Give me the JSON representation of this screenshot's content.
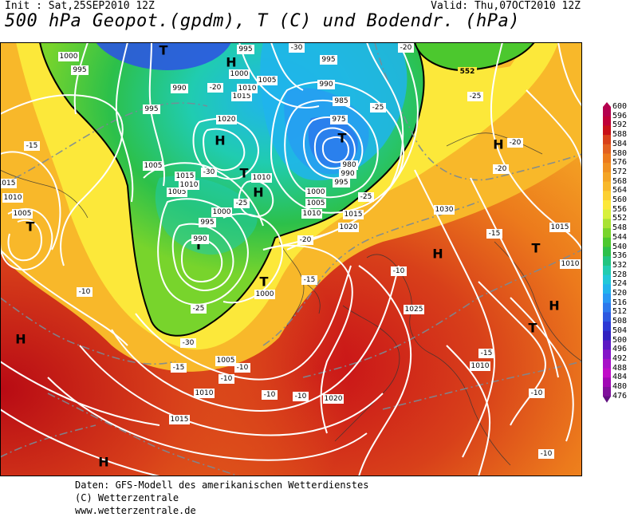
{
  "header": {
    "init": "Init : Sat,25SEP2010 12Z",
    "valid": "Valid: Thu,07OCT2010 12Z",
    "title": "500 hPa Geopot.(gpdm), T (C) und Bodendr. (hPa)"
  },
  "footer": {
    "line1": "Daten: GFS-Modell des amerikanischen Wetterdienstes",
    "line2": "(C) Wetterzentrale",
    "line3": "www.wetterzentrale.de"
  },
  "legend": {
    "levels": [
      "600",
      "596",
      "592",
      "588",
      "584",
      "580",
      "576",
      "572",
      "568",
      "564",
      "560",
      "556",
      "552",
      "548",
      "544",
      "540",
      "536",
      "532",
      "528",
      "524",
      "520",
      "516",
      "512",
      "508",
      "504",
      "500",
      "496",
      "492",
      "488",
      "484",
      "480",
      "476"
    ],
    "colors": [
      "#b4004e",
      "#c00038",
      "#c81018",
      "#d8401a",
      "#e26020",
      "#ec7a1c",
      "#f09020",
      "#f4a424",
      "#f8b82a",
      "#fcd032",
      "#fce83a",
      "#d8f03c",
      "#a8e234",
      "#78d42c",
      "#4cc82e",
      "#2cc04a",
      "#20c480",
      "#20ccb0",
      "#20c8d8",
      "#20b4ec",
      "#2898f4",
      "#2c78ec",
      "#2c58e0",
      "#2c38d4",
      "#3020c0",
      "#5c18c4",
      "#8414c8",
      "#a810c8",
      "#c00cc8",
      "#a008b4",
      "#80109c",
      "#601080"
    ]
  },
  "map_labels": {
    "highs": [
      "H",
      "H",
      "H",
      "H",
      "H",
      "H",
      "H",
      "H",
      "H",
      "H"
    ],
    "lows": [
      "T",
      "T",
      "T",
      "T",
      "T",
      "T",
      "T",
      "T",
      "T"
    ],
    "pressures": [
      "1000",
      "995",
      "995",
      "990",
      "995",
      "1005",
      "1005",
      "1000",
      "995",
      "990",
      "985",
      "975",
      "980",
      "990",
      "995",
      "1000",
      "1005",
      "1010",
      "1015",
      "1020",
      "1020",
      "1015",
      "1010",
      "1005",
      "1015",
      "1010",
      "1000",
      "995",
      "990",
      "1010",
      "1005",
      "1015",
      "1010",
      "1005",
      "1000",
      "1005",
      "1010",
      "1015",
      "1020",
      "1025",
      "1030",
      "1010",
      "1015",
      "1010",
      "1005",
      "1015",
      "1010"
    ],
    "temps": [
      "-30",
      "-20",
      "-20",
      "-25",
      "-15",
      "-25",
      "-30",
      "-25",
      "-20",
      "-20",
      "-25",
      "-25",
      "-20",
      "-15",
      "-15",
      "-10",
      "-10",
      "-10",
      "-10",
      "-10",
      "-10",
      "-15",
      "-10",
      "-10",
      "-15",
      "-20",
      "-25",
      "-30",
      "-10",
      "-10"
    ],
    "contour_552": "552"
  }
}
